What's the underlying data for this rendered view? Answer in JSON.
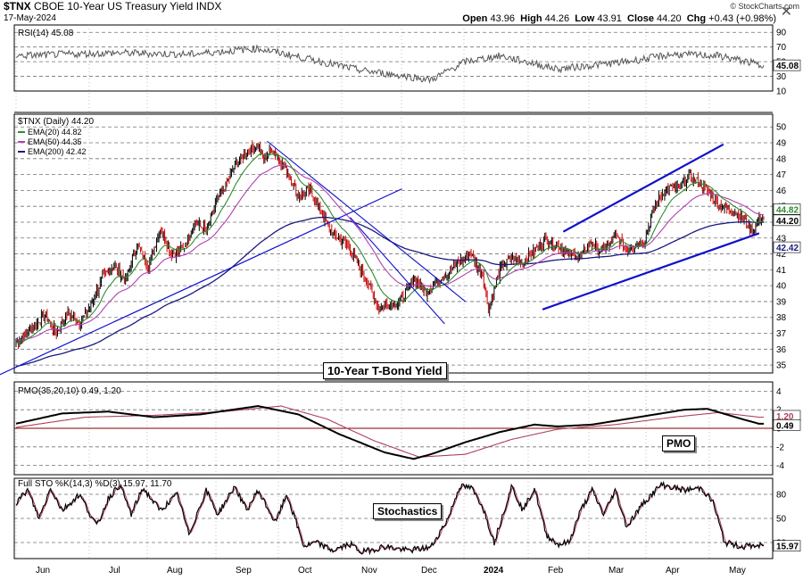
{
  "header": {
    "symbol": "$TNX",
    "name": "CBOE 10-Year US Treasury Yield",
    "exchange": "INDX",
    "date": "17-May-2024",
    "ohlc": {
      "open_label": "Open",
      "open": "43.96",
      "high_label": "High",
      "high": "44.26",
      "low_label": "Low",
      "low": "43.91",
      "close_label": "Close",
      "close": "44.20",
      "chg_label": "Chg",
      "chg": "+0.43 (+0.98%)"
    },
    "copyright": "© StockCharts.com"
  },
  "colors": {
    "up_bar": "#000000",
    "down_bar": "#cc0000",
    "ema20": "#2e8b2e",
    "ema50": "#b040b0",
    "ema200": "#1a1a80",
    "trendline": "#1010cc",
    "pmo": "#000000",
    "pmo_signal": "#b0405a",
    "rsi": "#555555",
    "stoch_k": "#000000",
    "stoch_d": "#b0405a",
    "grid": "#000000",
    "panel_border": "#000000"
  },
  "annotations": {
    "main": "10-Year T-Bond Yield",
    "pmo": "PMO",
    "stoch": "Stochastics"
  },
  "rsi_panel": {
    "legend": "RSI(14) 45.08",
    "ticks": [
      "90",
      "70",
      "50",
      "30",
      "10"
    ],
    "current": "45.08"
  },
  "price_panel": {
    "legend_title": "$TNX (Daily) 44.20",
    "legend_ema20": "EMA(20) 44.82",
    "legend_ema50": "EMA(50) 44.35",
    "legend_ema200": "EMA(200) 42.42",
    "ticks": [
      "50",
      "49",
      "48",
      "47",
      "46",
      "45",
      "44",
      "43",
      "42",
      "41",
      "40",
      "39",
      "38",
      "37",
      "36",
      "35"
    ],
    "value_labels": [
      "44.82",
      "44.20",
      "42.42"
    ]
  },
  "pmo_panel": {
    "legend": "PMO(35,20,10) 0.49, 1.20",
    "ticks": [
      "4",
      "2",
      "0",
      "-2",
      "-4"
    ],
    "value_labels": [
      "1.20",
      "0.49"
    ]
  },
  "stoch_panel": {
    "legend": "Full STO %K(14,3) %D(3) 15.97, 11.70",
    "ticks": [
      "80",
      "50",
      "20"
    ],
    "current": "15.97"
  },
  "x_axis": {
    "months": [
      "Jun",
      "Jul",
      "Aug",
      "Sep",
      "Oct",
      "Nov",
      "Dec",
      "2024",
      "Feb",
      "Mar",
      "Apr",
      "May"
    ]
  },
  "chart_data": [
    {
      "type": "line",
      "title": "$TNX (Daily)",
      "x_labels": [
        "Jun",
        "Jul",
        "Aug",
        "Sep",
        "Oct",
        "Nov",
        "Dec",
        "2024",
        "Feb",
        "Mar",
        "Apr",
        "May"
      ],
      "price_anchors": [
        [
          0,
          36.4
        ],
        [
          15,
          37.4
        ],
        [
          25,
          38.2
        ],
        [
          35,
          37.0
        ],
        [
          45,
          38.3
        ],
        [
          55,
          37.6
        ],
        [
          65,
          38.8
        ],
        [
          75,
          40.5
        ],
        [
          85,
          41.3
        ],
        [
          95,
          40.3
        ],
        [
          105,
          42.6
        ],
        [
          115,
          41.2
        ],
        [
          125,
          43.6
        ],
        [
          135,
          42.0
        ],
        [
          145,
          42.3
        ],
        [
          155,
          44.0
        ],
        [
          165,
          43.5
        ],
        [
          175,
          45.5
        ],
        [
          180,
          46.0
        ],
        [
          190,
          47.6
        ],
        [
          200,
          48.4
        ],
        [
          210,
          48.9
        ],
        [
          215,
          47.9
        ],
        [
          222,
          48.6
        ],
        [
          235,
          47.3
        ],
        [
          245,
          45.6
        ],
        [
          255,
          46.0
        ],
        [
          265,
          44.6
        ],
        [
          275,
          43.2
        ],
        [
          285,
          42.8
        ],
        [
          295,
          41.6
        ],
        [
          305,
          40.2
        ],
        [
          315,
          38.6
        ],
        [
          325,
          38.8
        ],
        [
          335,
          39.1
        ],
        [
          345,
          40.5
        ],
        [
          355,
          39.6
        ],
        [
          365,
          40.2
        ],
        [
          375,
          40.8
        ],
        [
          385,
          41.6
        ],
        [
          395,
          42.0
        ],
        [
          400,
          41.2
        ],
        [
          405,
          40.8
        ],
        [
          410,
          38.5
        ],
        [
          420,
          41.0
        ],
        [
          430,
          41.8
        ],
        [
          440,
          41.5
        ],
        [
          450,
          42.2
        ],
        [
          460,
          42.9
        ],
        [
          470,
          42.5
        ],
        [
          480,
          42.0
        ],
        [
          490,
          41.8
        ],
        [
          500,
          42.8
        ],
        [
          505,
          42.2
        ],
        [
          515,
          42.5
        ],
        [
          520,
          43.2
        ],
        [
          530,
          42.3
        ],
        [
          545,
          42.8
        ],
        [
          555,
          45.1
        ],
        [
          565,
          46.2
        ],
        [
          575,
          46.1
        ],
        [
          585,
          46.9
        ],
        [
          600,
          46.0
        ],
        [
          610,
          45.1
        ],
        [
          625,
          44.6
        ],
        [
          630,
          44.3
        ],
        [
          640,
          43.4
        ],
        [
          645,
          44.2
        ]
      ],
      "ema20": "smoothed (20)",
      "ema50": "smoothed (50)",
      "ema200": "smoothed (200)",
      "last_close": 44.2,
      "ema20_last": 44.82,
      "ema50_last": 44.35,
      "ema200_last": 42.42,
      "ylim": [
        35,
        50.5
      ]
    },
    {
      "type": "line",
      "title": "RSI(14)",
      "anchors": [
        [
          0,
          58
        ],
        [
          40,
          60
        ],
        [
          90,
          62
        ],
        [
          150,
          60
        ],
        [
          210,
          68
        ],
        [
          250,
          55
        ],
        [
          300,
          38
        ],
        [
          340,
          30
        ],
        [
          360,
          25
        ],
        [
          390,
          50
        ],
        [
          420,
          58
        ],
        [
          470,
          40
        ],
        [
          530,
          50
        ],
        [
          570,
          60
        ],
        [
          610,
          58
        ],
        [
          640,
          48
        ],
        [
          645,
          45.08
        ]
      ],
      "ylim": [
        10,
        100
      ]
    },
    {
      "type": "line",
      "title": "PMO(35,20,10)",
      "pmo_anchors": [
        [
          0,
          0.5
        ],
        [
          40,
          1.6
        ],
        [
          80,
          1.8
        ],
        [
          120,
          1.2
        ],
        [
          160,
          1.5
        ],
        [
          210,
          2.4
        ],
        [
          245,
          1.5
        ],
        [
          280,
          -0.6
        ],
        [
          320,
          -2.6
        ],
        [
          345,
          -3.3
        ],
        [
          360,
          -2.8
        ],
        [
          390,
          -1.5
        ],
        [
          420,
          -0.4
        ],
        [
          450,
          0.4
        ],
        [
          470,
          0.2
        ],
        [
          500,
          0.4
        ],
        [
          540,
          1.2
        ],
        [
          580,
          2.0
        ],
        [
          600,
          2.1
        ],
        [
          630,
          1.0
        ],
        [
          645,
          0.49
        ]
      ],
      "signal_anchors": [
        [
          0,
          0.1
        ],
        [
          60,
          1.2
        ],
        [
          120,
          1.4
        ],
        [
          180,
          1.8
        ],
        [
          230,
          2.4
        ],
        [
          270,
          1.0
        ],
        [
          310,
          -1.3
        ],
        [
          350,
          -3.1
        ],
        [
          390,
          -2.8
        ],
        [
          430,
          -1.2
        ],
        [
          470,
          -0.1
        ],
        [
          520,
          0.4
        ],
        [
          570,
          1.2
        ],
        [
          610,
          1.7
        ],
        [
          645,
          1.2
        ]
      ],
      "ylim": [
        -5,
        5
      ]
    },
    {
      "type": "line",
      "title": "Full STO %K(14,3) %D(3)",
      "k_anchors": [
        [
          0,
          70
        ],
        [
          10,
          85
        ],
        [
          20,
          50
        ],
        [
          30,
          88
        ],
        [
          40,
          60
        ],
        [
          55,
          80
        ],
        [
          70,
          40
        ],
        [
          80,
          75
        ],
        [
          90,
          92
        ],
        [
          100,
          55
        ],
        [
          110,
          88
        ],
        [
          125,
          60
        ],
        [
          140,
          80
        ],
        [
          150,
          30
        ],
        [
          165,
          85
        ],
        [
          175,
          55
        ],
        [
          190,
          90
        ],
        [
          200,
          60
        ],
        [
          210,
          85
        ],
        [
          225,
          45
        ],
        [
          235,
          80
        ],
        [
          250,
          15
        ],
        [
          260,
          20
        ],
        [
          275,
          10
        ],
        [
          290,
          18
        ],
        [
          300,
          8
        ],
        [
          320,
          15
        ],
        [
          340,
          10
        ],
        [
          360,
          14
        ],
        [
          375,
          50
        ],
        [
          385,
          90
        ],
        [
          395,
          88
        ],
        [
          405,
          65
        ],
        [
          415,
          20
        ],
        [
          430,
          90
        ],
        [
          440,
          60
        ],
        [
          450,
          88
        ],
        [
          460,
          30
        ],
        [
          470,
          18
        ],
        [
          480,
          20
        ],
        [
          490,
          60
        ],
        [
          500,
          85
        ],
        [
          510,
          55
        ],
        [
          520,
          85
        ],
        [
          530,
          40
        ],
        [
          545,
          70
        ],
        [
          560,
          92
        ],
        [
          580,
          85
        ],
        [
          595,
          88
        ],
        [
          605,
          70
        ],
        [
          615,
          20
        ],
        [
          630,
          15
        ],
        [
          640,
          16
        ],
        [
          645,
          15.97
        ]
      ],
      "d_lag": 3,
      "k_last": 15.97,
      "d_last": 11.7,
      "ylim": [
        0,
        100
      ]
    }
  ]
}
